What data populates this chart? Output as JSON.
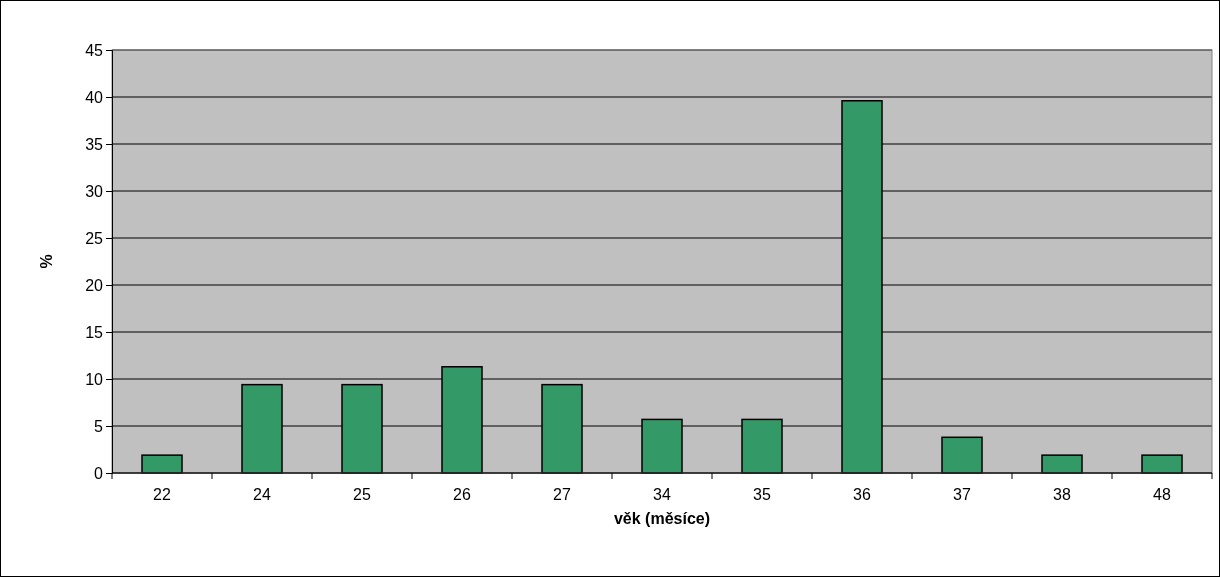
{
  "chart_data": {
    "type": "bar",
    "xlabel": "věk (měsíce)",
    "ylabel": "%",
    "categories": [
      "22",
      "24",
      "25",
      "26",
      "27",
      "34",
      "35",
      "36",
      "37",
      "38",
      "48"
    ],
    "values": [
      1.9,
      9.4,
      9.4,
      11.3,
      9.4,
      5.7,
      5.7,
      39.6,
      3.8,
      1.9,
      1.9
    ],
    "color": "#339966",
    "ylim": [
      0,
      45
    ],
    "yticks": [
      0,
      5,
      10,
      15,
      20,
      25,
      30,
      35,
      40,
      45
    ],
    "grid": "y"
  }
}
